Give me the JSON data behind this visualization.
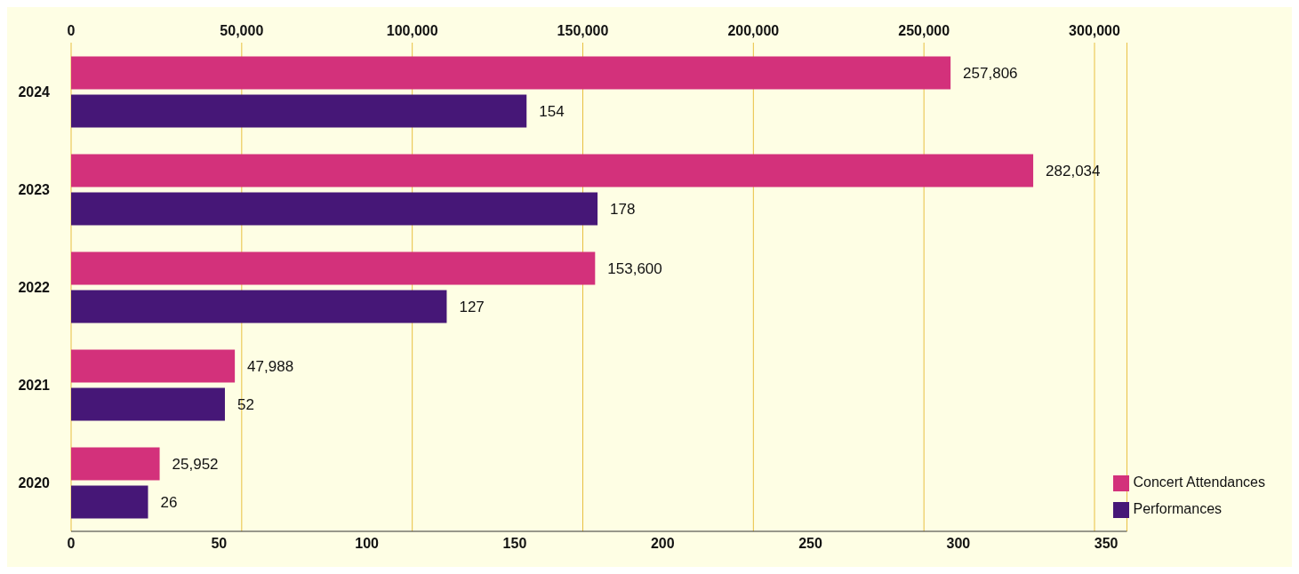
{
  "chart_data": {
    "type": "bar",
    "orientation": "horizontal",
    "categories": [
      "2024",
      "2023",
      "2022",
      "2021",
      "2020"
    ],
    "series": [
      {
        "name": "Concert Attendances",
        "color": "#d3317b",
        "axis": "x2",
        "values": [
          257806,
          282034,
          153600,
          47988,
          25952
        ],
        "value_labels": [
          "257,806",
          "282,034",
          "153,600",
          "47,988",
          "25,952"
        ]
      },
      {
        "name": "Performances",
        "color": "#461777",
        "values": [
          154,
          178,
          127,
          52,
          26
        ],
        "value_labels": [
          "154",
          "178",
          "127",
          "52",
          "26"
        ]
      }
    ],
    "xlim": [
      0,
      357
    ],
    "xticks": [
      0,
      50,
      100,
      150,
      200,
      250,
      300,
      350
    ],
    "x2lim": [
      0,
      309500
    ],
    "x2ticks": [
      {
        "value": 0,
        "label": "0"
      },
      {
        "value": 50000,
        "label": "50,000"
      },
      {
        "value": 100000,
        "label": "100,000"
      },
      {
        "value": 150000,
        "label": "150,000"
      },
      {
        "value": 200000,
        "label": "200,000"
      },
      {
        "value": 250000,
        "label": "250,000"
      },
      {
        "value": 300000,
        "label": "300,000"
      }
    ],
    "grid": "x",
    "legend": "bottom right"
  }
}
